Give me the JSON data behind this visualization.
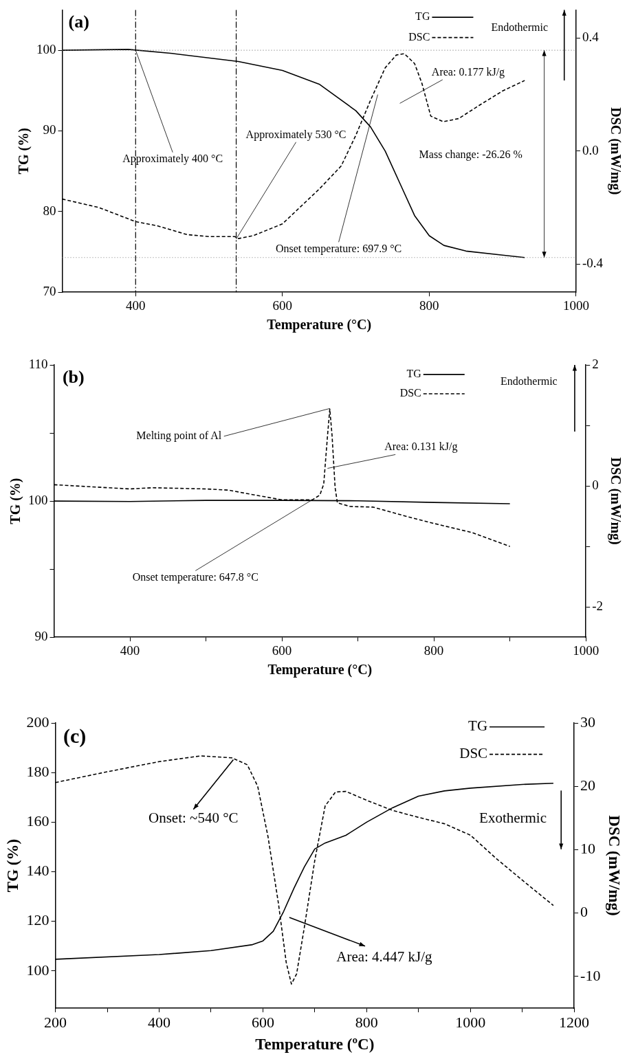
{
  "chart_data": [
    {
      "type": "line",
      "title": "(a)",
      "xlabel": "Temperature (°C)",
      "ylabel": "TG (%)",
      "y2label": "DSC (mW/mg)",
      "xlim": [
        300,
        1000
      ],
      "xticks": [
        400,
        600,
        800,
        1000
      ],
      "ylim": [
        70,
        105
      ],
      "yticks": [
        70,
        80,
        90,
        100
      ],
      "y2lim": [
        -0.5,
        0.5
      ],
      "y2ticks": [
        {
          "value": -0.4,
          "label": "-0.4"
        },
        {
          "value": 0,
          "label": "0.0"
        },
        {
          "value": 0.4,
          "label": "0.4"
        }
      ],
      "legend": "top right",
      "series": [
        {
          "name": "TG",
          "color": "#000000",
          "line_style": "solid",
          "x": [
            300,
            390,
            450,
            540,
            600,
            650,
            700,
            720,
            740,
            760,
            780,
            800,
            820,
            850,
            900,
            930
          ],
          "values": [
            100,
            100.1,
            99.6,
            98.6,
            97.5,
            95.8,
            92.5,
            90.5,
            87.5,
            83.5,
            79.5,
            77,
            75.8,
            75.1,
            74.6,
            74.3
          ]
        },
        {
          "name": "DSC",
          "color": "#000000",
          "line_style": "dashed",
          "axis": "y2",
          "x": [
            300,
            350,
            400,
            430,
            470,
            500,
            535,
            540,
            560,
            600,
            650,
            680,
            700,
            720,
            740,
            755,
            766,
            780,
            790,
            802,
            819,
            840,
            870,
            900,
            930
          ],
          "values": [
            -0.17,
            -0.2,
            -0.25,
            -0.265,
            -0.296,
            -0.303,
            -0.303,
            -0.31,
            -0.3,
            -0.258,
            -0.135,
            -0.053,
            0.056,
            0.18,
            0.295,
            0.34,
            0.345,
            0.31,
            0.24,
            0.124,
            0.104,
            0.115,
            0.165,
            0.213,
            0.25
          ]
        }
      ],
      "ref_lines": [
        {
          "axis": "x",
          "value": 400,
          "color": "#000000",
          "line_style": "dashdot"
        },
        {
          "axis": "x",
          "value": 537,
          "color": "#000000",
          "line_style": "dashdot"
        },
        {
          "axis": "y",
          "value": 100,
          "color": "#808080",
          "line_style": "dotted"
        },
        {
          "axis": "y",
          "value": 74.3,
          "color": "#808080",
          "line_style": "dotted"
        }
      ],
      "annotations": [
        {
          "text": "Approximately 400 °C",
          "x": 400,
          "y": 100
        },
        {
          "text": "Approximately 530 °C",
          "x": 537,
          "y": 76.6
        },
        "Onset temperature: 697.9 °C",
        "Area: 0.177 kJ/g",
        "Mass change: -26.26 %",
        "Endothermic"
      ]
    },
    {
      "type": "line",
      "title": "(b)",
      "xlabel": "Temperature (°C)",
      "ylabel": "TG (%)",
      "y2label": "DSC (mW/mg)",
      "xlim": [
        300,
        1000
      ],
      "xticks": [
        400,
        {
          "value": 500,
          "label": null
        },
        600,
        {
          "value": 700,
          "label": null
        },
        800,
        {
          "value": 900,
          "label": null
        },
        1000
      ],
      "ylim": [
        90,
        110
      ],
      "yticks": [
        90,
        {
          "value": 95,
          "label": null
        },
        100,
        {
          "value": 105,
          "label": null
        },
        110
      ],
      "y2lim": [
        -2.5,
        2
      ],
      "y2ticks": [
        -2,
        {
          "value": -1,
          "label": null
        },
        0,
        {
          "value": 1,
          "label": null
        },
        2
      ],
      "legend": "top right",
      "series": [
        {
          "name": "TG",
          "color": "#000000",
          "line_style": "solid",
          "x": [
            300,
            400,
            500,
            600,
            700,
            800,
            900
          ],
          "values": [
            100,
            99.97,
            100.05,
            100.05,
            100.02,
            99.9,
            99.8
          ]
        },
        {
          "name": "DSC",
          "color": "#000000",
          "line_style": "dashed",
          "axis": "y2",
          "x": [
            300,
            400,
            430,
            500,
            530,
            560,
            600,
            640,
            650,
            655,
            660,
            663,
            666,
            670,
            673,
            690,
            720,
            760,
            800,
            850,
            900
          ],
          "values": [
            0.02,
            -0.05,
            -0.03,
            -0.05,
            -0.07,
            -0.14,
            -0.23,
            -0.23,
            -0.15,
            0.03,
            0.83,
            1.27,
            0.83,
            -0.03,
            -0.28,
            -0.34,
            -0.35,
            -0.49,
            -0.62,
            -0.77,
            -1.0
          ]
        }
      ],
      "annotations": [
        {
          "text": "Melting point of Al",
          "x": 663,
          "y": 106.8
        },
        {
          "text": "Area: 0.131 kJ/g",
          "x": 660,
          "y": 102.4
        },
        {
          "text": "Onset temperature: 647.8 °C",
          "x": 640,
          "y": 100.1
        },
        "Endothermic"
      ]
    },
    {
      "type": "line",
      "title": "(c)",
      "xlabel": "Temperature (ºC)",
      "ylabel": "TG (%)",
      "y2label": "DSC (mW/mg)",
      "xlim": [
        200,
        1200
      ],
      "xticks": [
        200,
        {
          "value": 300,
          "label": null
        },
        400,
        {
          "value": 500,
          "label": null
        },
        600,
        {
          "value": 700,
          "label": null
        },
        800,
        {
          "value": 900,
          "label": null
        },
        1000,
        {
          "value": 1100,
          "label": null
        },
        1200
      ],
      "ylim": [
        85,
        200
      ],
      "yticks": [
        100,
        120,
        140,
        160,
        180,
        200
      ],
      "y2lim": [
        -15,
        30
      ],
      "y2ticks": [
        -10,
        0,
        10,
        20,
        30
      ],
      "legend": "top right",
      "series": [
        {
          "name": "TG",
          "color": "#000000",
          "line_style": "solid",
          "x": [
            200,
            400,
            500,
            580,
            600,
            620,
            640,
            660,
            680,
            700,
            720,
            760,
            800,
            850,
            900,
            950,
            1000,
            1100,
            1160
          ],
          "values": [
            104.7,
            106.6,
            108.2,
            110.6,
            112.1,
            116,
            124,
            133.4,
            142,
            149.2,
            151.6,
            154.7,
            160,
            165.8,
            170.5,
            172.6,
            173.7,
            175.2,
            175.7
          ]
        },
        {
          "name": "DSC",
          "color": "#000000",
          "line_style": "dashed",
          "axis": "y2",
          "x": [
            200,
            300,
            400,
            480,
            540,
            570,
            590,
            610,
            630,
            645,
            655,
            665,
            680,
            700,
            720,
            740,
            760,
            800,
            850,
            900,
            950,
            1000,
            1050,
            1100,
            1160
          ],
          "values": [
            20.6,
            22.3,
            23.9,
            24.8,
            24.5,
            23.4,
            20,
            12,
            1.5,
            -7.8,
            -11.2,
            -9.6,
            -2.2,
            8.3,
            16.9,
            19.1,
            19.2,
            17.8,
            16.2,
            15.1,
            14.1,
            12.3,
            8.6,
            5.2,
            1.2
          ]
        }
      ],
      "annotations": [
        {
          "text": "Onset: ~540 °C",
          "x": 543,
          "y": 185.2
        },
        "Area: 4.447 kJ/g",
        "Exothermic"
      ]
    }
  ]
}
